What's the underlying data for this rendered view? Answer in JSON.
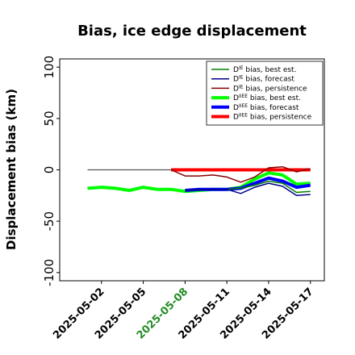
{
  "chart_data": {
    "type": "line",
    "title": "Bias, ice edge displacement",
    "xlabel": "",
    "ylabel": "Displacement bias (km)",
    "ylim": [
      -108,
      108
    ],
    "yticks": [
      -100,
      -50,
      0,
      50,
      100
    ],
    "xlim": [
      "2025-04-29",
      "2025-05-18"
    ],
    "xticks": [
      "2025-05-02",
      "2025-05-05",
      "2025-05-08",
      "2025-05-11",
      "2025-05-14",
      "2025-05-17"
    ],
    "highlight_tick": "2025-05-08",
    "highlight_color": "#228B22",
    "zero_line": {
      "x_start": "2025-05-01",
      "x_end": "2025-05-17",
      "color": "#555555"
    },
    "legend_position": "top-right",
    "series": [
      {
        "name": "D",
        "name_sup": "IE",
        "name_suffix": " bias, best est.",
        "color": "#008000",
        "width": 1.5,
        "x": [
          "2025-05-08",
          "2025-05-09",
          "2025-05-10",
          "2025-05-11",
          "2025-05-12",
          "2025-05-13",
          "2025-05-14",
          "2025-05-15",
          "2025-05-16",
          "2025-05-17"
        ],
        "y": [
          -20,
          -19,
          -19,
          -19,
          -18,
          -15,
          -11,
          -13,
          -22,
          -21
        ]
      },
      {
        "name": "D",
        "name_sup": "IE",
        "name_suffix": " bias, forecast",
        "color": "#00008b",
        "width": 1.5,
        "x": [
          "2025-05-08",
          "2025-05-09",
          "2025-05-10",
          "2025-05-11",
          "2025-05-12",
          "2025-05-13",
          "2025-05-14",
          "2025-05-15",
          "2025-05-16",
          "2025-05-17"
        ],
        "y": [
          -20,
          -19,
          -19,
          -19,
          -23,
          -17,
          -13,
          -16,
          -25,
          -24
        ]
      },
      {
        "name": "D",
        "name_sup": "IE",
        "name_suffix": " bias, persistence",
        "color": "#8b0000",
        "width": 1.5,
        "x": [
          "2025-05-07",
          "2025-05-08",
          "2025-05-09",
          "2025-05-10",
          "2025-05-11",
          "2025-05-12",
          "2025-05-13",
          "2025-05-14",
          "2025-05-15",
          "2025-05-16",
          "2025-05-17"
        ],
        "y": [
          0,
          -6,
          -6,
          -5,
          -7,
          -12,
          -7,
          2,
          3,
          -2,
          1
        ]
      },
      {
        "name": "D",
        "name_sup": "IIEE",
        "name_suffix": " bias, best est.",
        "color": "#00ff00",
        "width": 4,
        "x": [
          "2025-05-01",
          "2025-05-02",
          "2025-05-03",
          "2025-05-04",
          "2025-05-05",
          "2025-05-06",
          "2025-05-07",
          "2025-05-08",
          "2025-05-09",
          "2025-05-10",
          "2025-05-11",
          "2025-05-12",
          "2025-05-13",
          "2025-05-14",
          "2025-05-15",
          "2025-05-16",
          "2025-05-17"
        ],
        "y": [
          -18,
          -17,
          -18,
          -20,
          -17,
          -19,
          -19,
          -21,
          -20,
          -19,
          -19,
          -17,
          -9,
          -3,
          -5,
          -14,
          -13
        ]
      },
      {
        "name": "D",
        "name_sup": "IIEE",
        "name_suffix": " bias, forecast",
        "color": "#0000ff",
        "width": 4,
        "x": [
          "2025-05-08",
          "2025-05-09",
          "2025-05-10",
          "2025-05-11",
          "2025-05-12",
          "2025-05-13",
          "2025-05-14",
          "2025-05-15",
          "2025-05-16",
          "2025-05-17"
        ],
        "y": [
          -20,
          -19,
          -19,
          -19,
          -18,
          -13,
          -8,
          -11,
          -17,
          -15
        ]
      },
      {
        "name": "D",
        "name_sup": "IIEE",
        "name_suffix": " bias, persistence",
        "color": "#ff0000",
        "width": 4,
        "x": [
          "2025-05-07",
          "2025-05-08",
          "2025-05-09",
          "2025-05-10",
          "2025-05-11",
          "2025-05-12",
          "2025-05-13",
          "2025-05-14",
          "2025-05-15",
          "2025-05-16",
          "2025-05-17"
        ],
        "y": [
          0,
          0,
          0,
          0,
          0,
          0,
          0,
          0,
          0,
          0,
          0
        ]
      }
    ]
  }
}
